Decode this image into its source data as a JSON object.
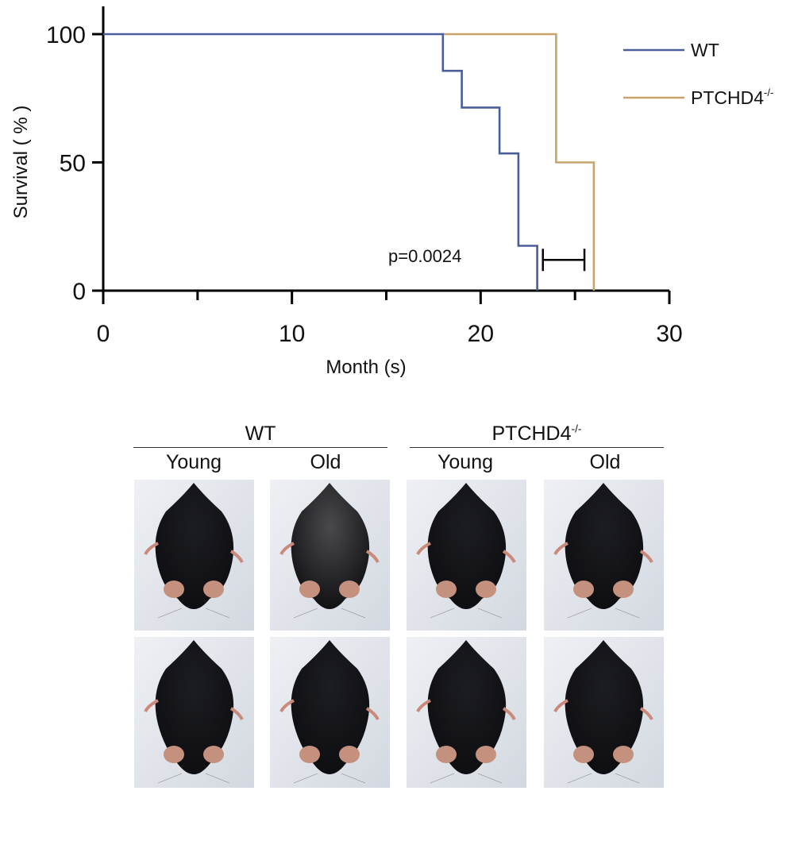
{
  "chart_data": {
    "type": "line",
    "step": true,
    "title": "",
    "xlabel": "Month (s)",
    "ylabel": "Survival ( % )",
    "xlim": [
      0,
      30
    ],
    "ylim": [
      0,
      100
    ],
    "x_ticks": [
      0,
      10,
      20,
      30
    ],
    "x_minor_ticks": [
      5,
      15,
      25
    ],
    "y_ticks": [
      0,
      50,
      100
    ],
    "grid": false,
    "legend_position": "top-right",
    "series": [
      {
        "name": "WT",
        "color": "#4a5e9a",
        "points": [
          [
            0,
            100
          ],
          [
            18,
            100
          ],
          [
            18,
            85.7
          ],
          [
            19,
            85.7
          ],
          [
            19,
            71.4
          ],
          [
            21,
            71.4
          ],
          [
            21,
            53.5
          ],
          [
            22,
            53.5
          ],
          [
            22,
            17.5
          ],
          [
            23,
            17.5
          ],
          [
            23,
            0
          ]
        ]
      },
      {
        "name": "PTCHD4",
        "name_sup": "-/-",
        "color": "#c9a46a",
        "points": [
          [
            18,
            100
          ],
          [
            24,
            100
          ],
          [
            24,
            50
          ],
          [
            26,
            50
          ],
          [
            26,
            0
          ]
        ]
      }
    ],
    "annotation": {
      "text": "p=0.0024",
      "bracket_x": [
        23.3,
        25.5
      ],
      "bracket_y": 12
    }
  },
  "panel_b": {
    "groups": [
      {
        "label": "WT",
        "label_sup": ""
      },
      {
        "label": "PTCHD4",
        "label_sup": "-/-"
      }
    ],
    "columns": [
      "Young",
      "Old",
      "Young",
      "Old"
    ]
  }
}
